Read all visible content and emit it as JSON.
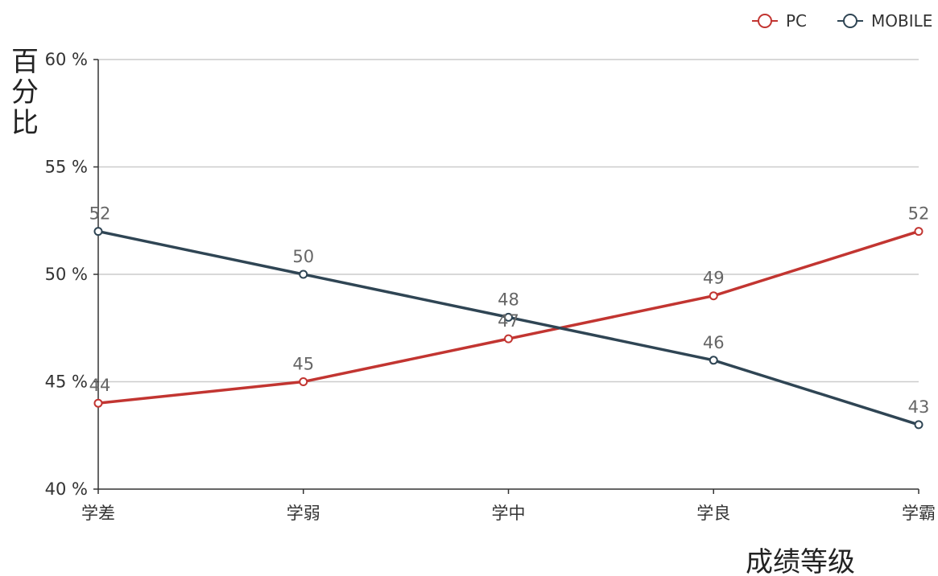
{
  "chart_data": {
    "type": "line",
    "categories": [
      "学差",
      "学弱",
      "学中",
      "学良",
      "学霸"
    ],
    "series": [
      {
        "name": "PC",
        "values": [
          44,
          45,
          47,
          49,
          52
        ],
        "color": "#c23531"
      },
      {
        "name": "MOBILE",
        "values": [
          52,
          50,
          48,
          46,
          43
        ],
        "color": "#2f4554"
      }
    ],
    "ylabel": "百分比",
    "xlabel": "成绩等级",
    "ylim": [
      40,
      60
    ],
    "yticks": [
      40,
      45,
      50,
      55,
      60
    ],
    "ytick_format": "{v} %",
    "grid": true,
    "legend": "top-right",
    "axis_color": "#333333",
    "grid_color": "#cccccc"
  }
}
